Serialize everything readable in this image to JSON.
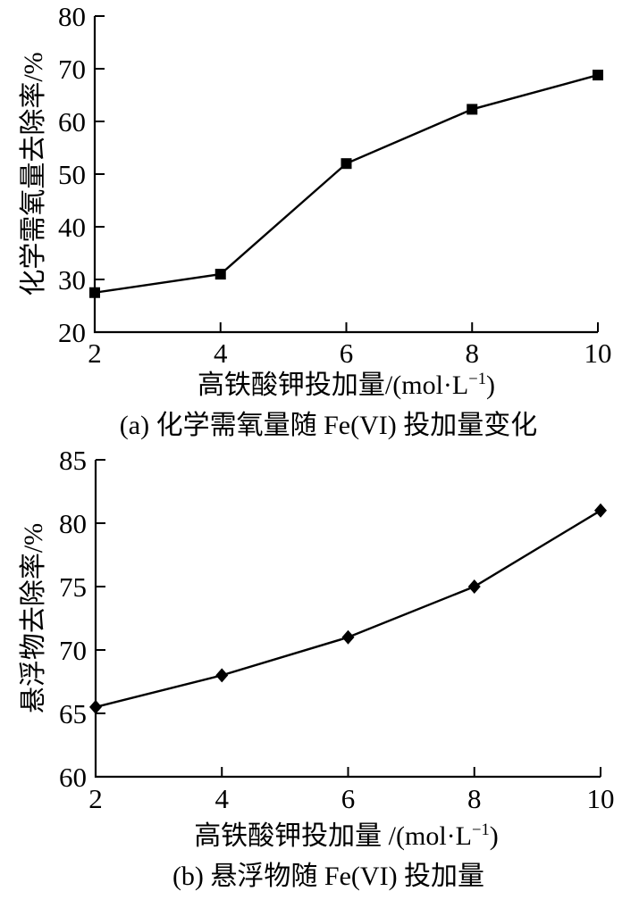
{
  "page": {
    "background_color": "#ffffff",
    "foreground_color": "#000000"
  },
  "chart_data": [
    {
      "type": "line",
      "panel": "a",
      "caption": "(a) 化学需氧量随 Fe(VI) 投加量变化",
      "ylabel": "化学需氧量去除率/%",
      "xlabel": {
        "base": "高铁酸钾投加量/(mol·L",
        "sup": "−1",
        "close": ")"
      },
      "x": [
        2,
        4,
        6,
        8,
        10
      ],
      "y": [
        27.5,
        31,
        52,
        62.3,
        68.8
      ],
      "xlim": [
        2,
        10
      ],
      "ylim": [
        20,
        80
      ],
      "xticks": [
        2,
        4,
        6,
        8,
        10
      ],
      "yticks": [
        20,
        30,
        40,
        50,
        60,
        70,
        80
      ],
      "marker": "square",
      "line_color": "#000000",
      "marker_color": "#000000",
      "grid": false,
      "legend": "none"
    },
    {
      "type": "line",
      "panel": "b",
      "caption": "(b) 悬浮物随 Fe(VI) 投加量",
      "ylabel": "悬浮物去除率/%",
      "xlabel": {
        "base": "高铁酸钾投加量 /(mol·L",
        "sup": "−1",
        "close": ")"
      },
      "x": [
        2,
        4,
        6,
        8,
        10
      ],
      "y": [
        65.5,
        68,
        71,
        75,
        81
      ],
      "xlim": [
        2,
        10
      ],
      "ylim": [
        60,
        85
      ],
      "xticks": [
        2,
        4,
        6,
        8,
        10
      ],
      "yticks": [
        60,
        65,
        70,
        75,
        80,
        85
      ],
      "marker": "diamond",
      "line_color": "#000000",
      "marker_color": "#000000",
      "grid": false,
      "legend": "none"
    }
  ]
}
